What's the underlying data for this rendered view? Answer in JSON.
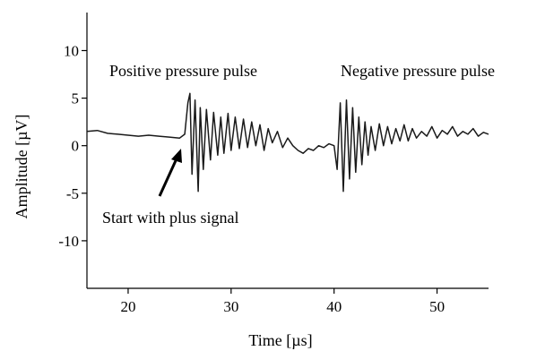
{
  "chart_data": {
    "type": "line",
    "title": "",
    "xlabel": "Time [µs]",
    "ylabel": "Amplitude [µV]",
    "xlim": [
      16,
      55
    ],
    "ylim": [
      -15,
      14
    ],
    "xticks": [
      20,
      30,
      40,
      50
    ],
    "yticks": [
      -10,
      -5,
      0,
      5,
      10
    ],
    "grid": false,
    "legend": "none",
    "line_color": "#1a1a1a",
    "series": [
      {
        "x": [
          16,
          17,
          18,
          19,
          20,
          21,
          22,
          23,
          24,
          25,
          25.5,
          25.8,
          26.0,
          26.2,
          26.5,
          26.8,
          27.0,
          27.3,
          27.6,
          28.0,
          28.3,
          28.7,
          29.0,
          29.3,
          29.7,
          30.0,
          30.4,
          30.8,
          31.2,
          31.6,
          32.0,
          32.4,
          32.8,
          33.2,
          33.6,
          34.0,
          34.5,
          35.0,
          35.5,
          36.0,
          36.5,
          37.0,
          37.5,
          38.0,
          38.5,
          39.0,
          39.5,
          40.0,
          40.3,
          40.6,
          40.9,
          41.2,
          41.5,
          41.8,
          42.1,
          42.4,
          42.7,
          43.0,
          43.3,
          43.6,
          44.0,
          44.4,
          44.8,
          45.2,
          45.6,
          46.0,
          46.4,
          46.8,
          47.2,
          47.6,
          48.0,
          48.5,
          49.0,
          49.5,
          50.0,
          50.5,
          51.0,
          51.5,
          52.0,
          52.5,
          53.0,
          53.5,
          54.0,
          54.5,
          55.0
        ],
        "y": [
          1.5,
          1.6,
          1.3,
          1.2,
          1.1,
          1.0,
          1.1,
          1.0,
          0.9,
          0.8,
          1.2,
          4.5,
          5.5,
          -3.0,
          4.8,
          -4.8,
          4.0,
          -2.5,
          3.8,
          -1.5,
          3.5,
          -1.0,
          3.0,
          -0.8,
          3.4,
          -0.5,
          3.0,
          -0.3,
          2.8,
          -0.2,
          2.5,
          0.0,
          2.2,
          -0.5,
          1.8,
          0.3,
          1.5,
          -0.2,
          0.8,
          0.0,
          -0.5,
          -0.8,
          -0.3,
          -0.5,
          0.0,
          -0.2,
          0.2,
          0.0,
          -2.5,
          4.5,
          -4.8,
          4.8,
          -3.5,
          4.0,
          -2.8,
          3.0,
          -2.0,
          2.5,
          -1.0,
          2.0,
          -0.5,
          2.3,
          0.0,
          2.0,
          0.2,
          1.8,
          0.5,
          2.2,
          0.5,
          1.8,
          0.8,
          1.5,
          1.0,
          2.0,
          0.8,
          1.6,
          1.2,
          2.0,
          1.0,
          1.5,
          1.2,
          1.8,
          1.0,
          1.4,
          1.2
        ]
      }
    ],
    "annotations": [
      {
        "text": "Positive pressure pulse"
      },
      {
        "text": "Negative pressure pulse"
      },
      {
        "text": "Start with plus signal"
      }
    ]
  }
}
